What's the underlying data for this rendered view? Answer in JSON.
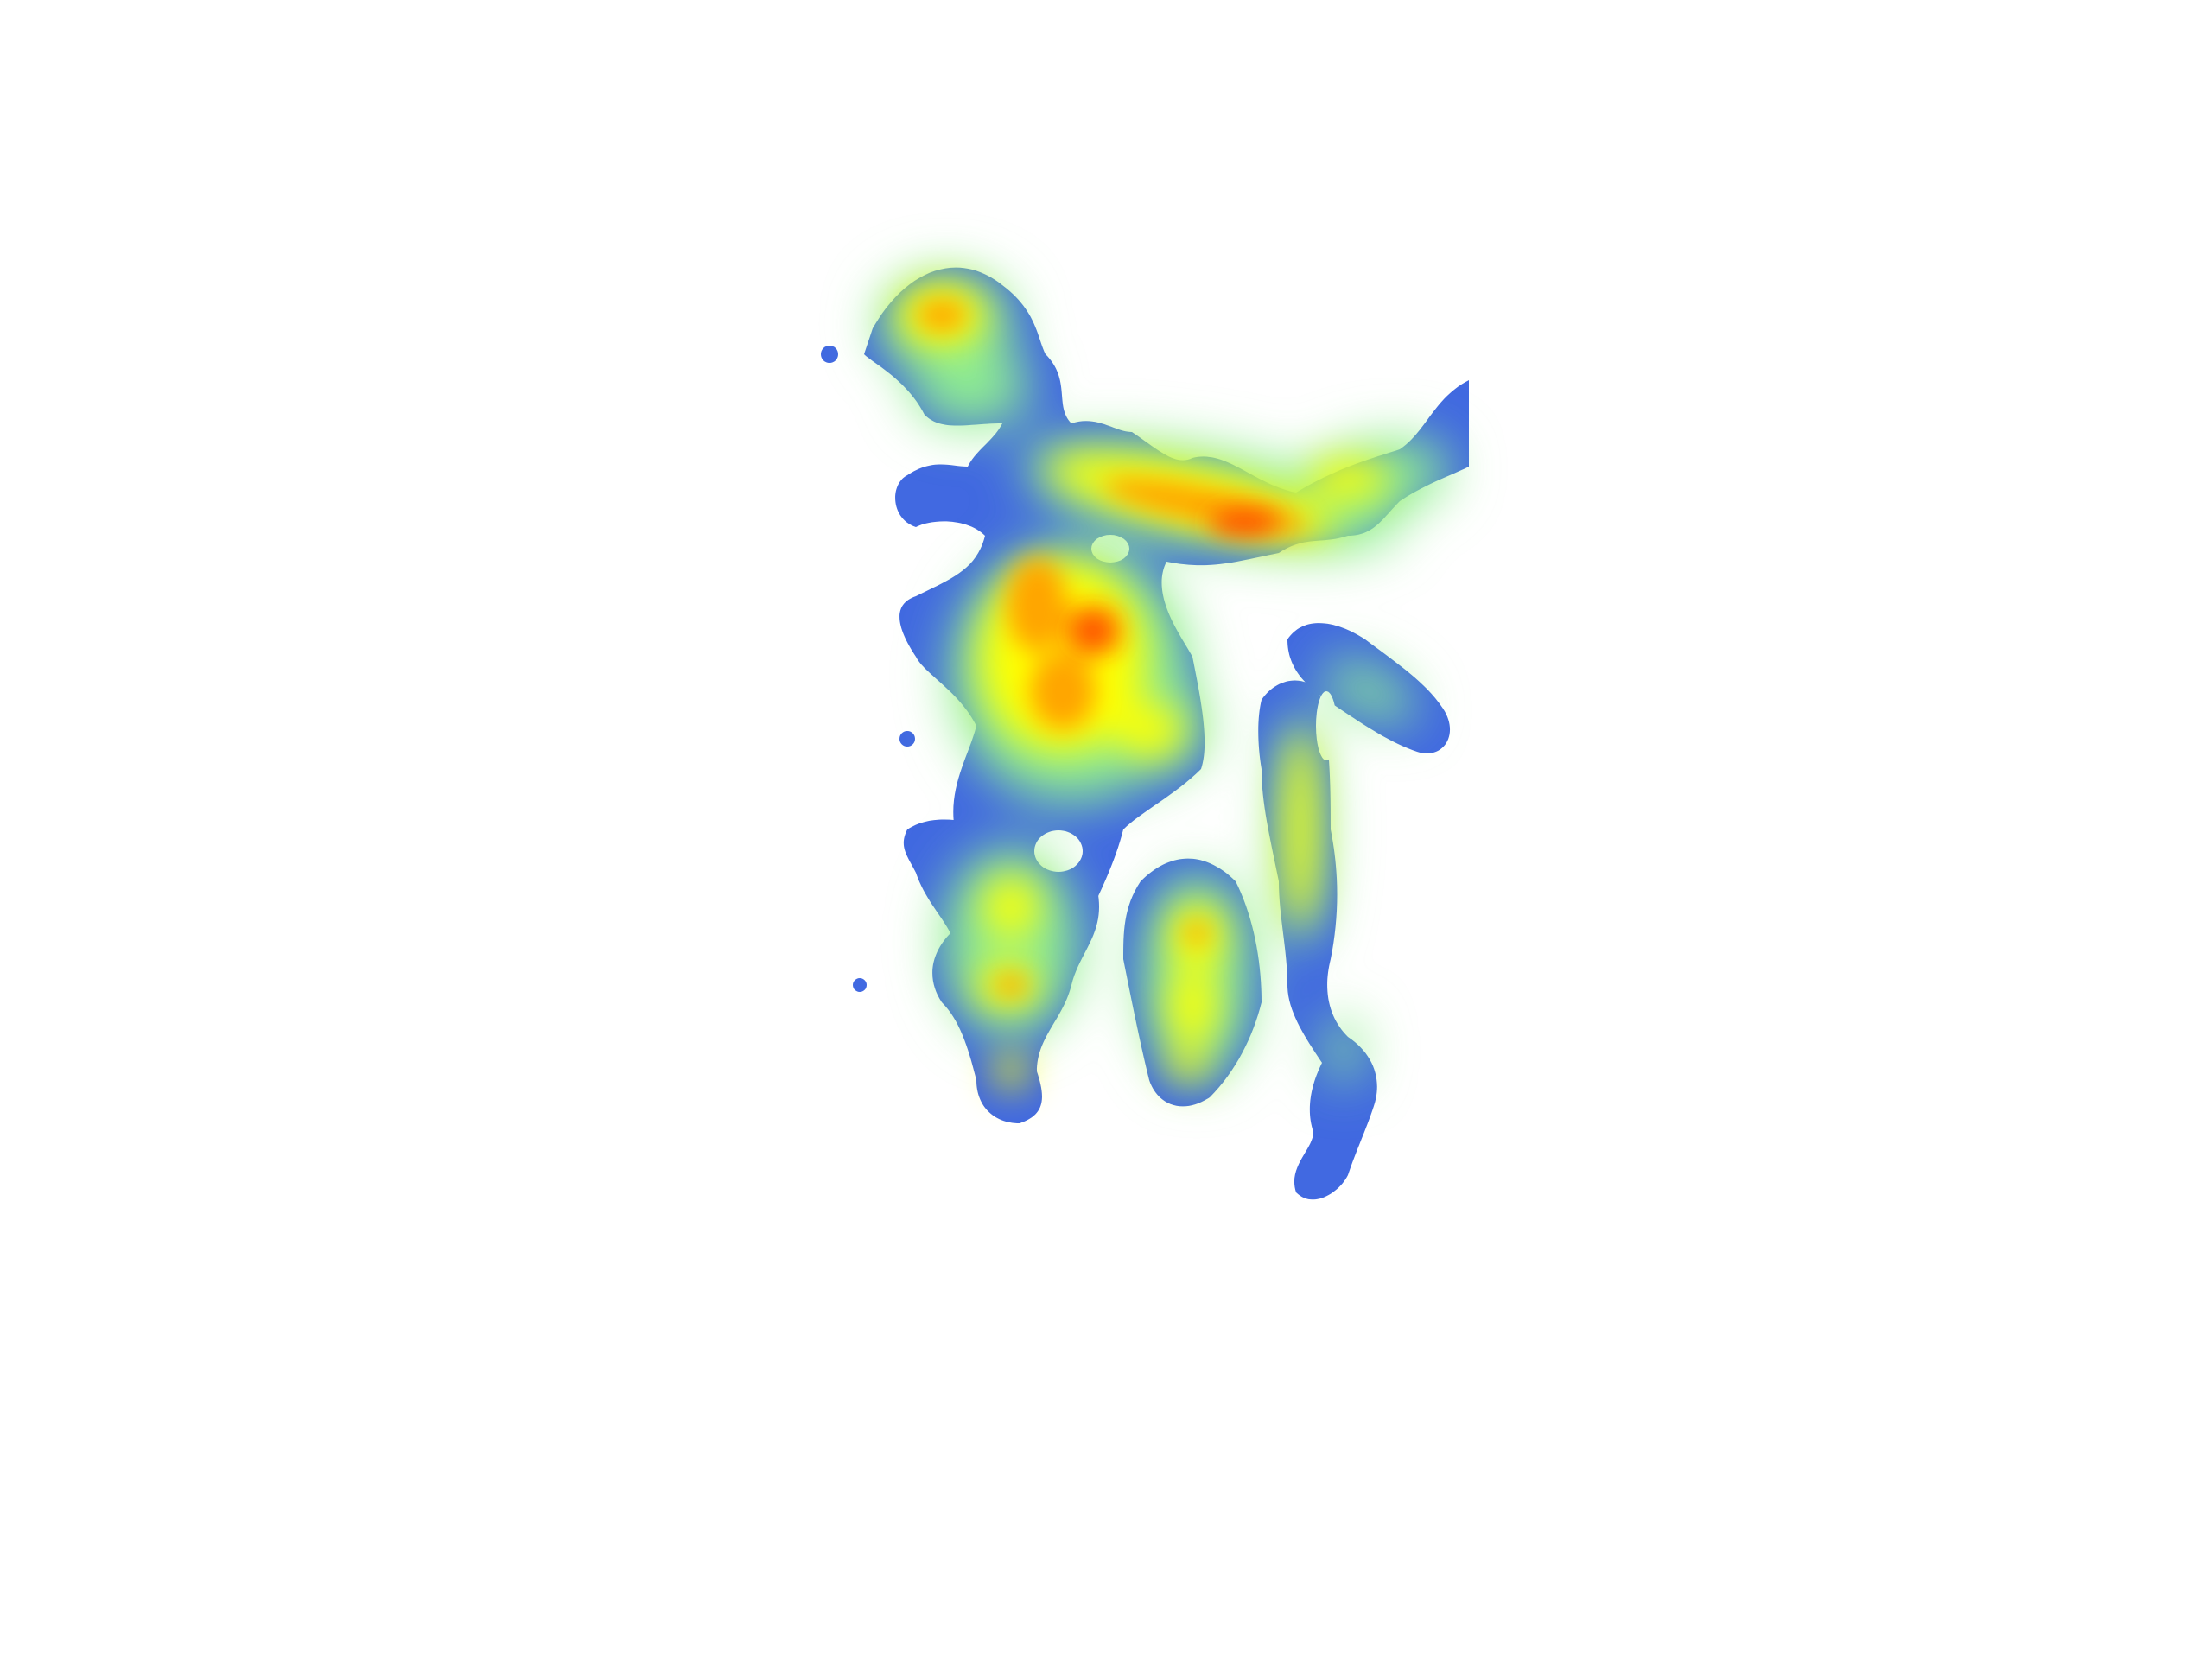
{
  "map": {
    "kind": "density-heatmap",
    "background_color": "#ffffff",
    "color_ramp": [
      "#4169e1",
      "#90ee90",
      "#ffff00",
      "#ffa500",
      "#ff4500"
    ],
    "regions": [
      {
        "name": "northwest-lobe",
        "peak": 0.78
      },
      {
        "name": "northeast-ridge",
        "peak": 0.93
      },
      {
        "name": "central-core",
        "peak": 0.9
      },
      {
        "name": "central-east-pocket",
        "peak": 0.7
      },
      {
        "name": "eastern-spur",
        "peak": 0.4
      },
      {
        "name": "eastern-strip",
        "peak": 0.68
      },
      {
        "name": "southwest-cluster",
        "peak": 0.72
      },
      {
        "name": "south-central-lobe",
        "peak": 0.72
      },
      {
        "name": "southeast-tail",
        "peak": 0.35
      }
    ]
  }
}
